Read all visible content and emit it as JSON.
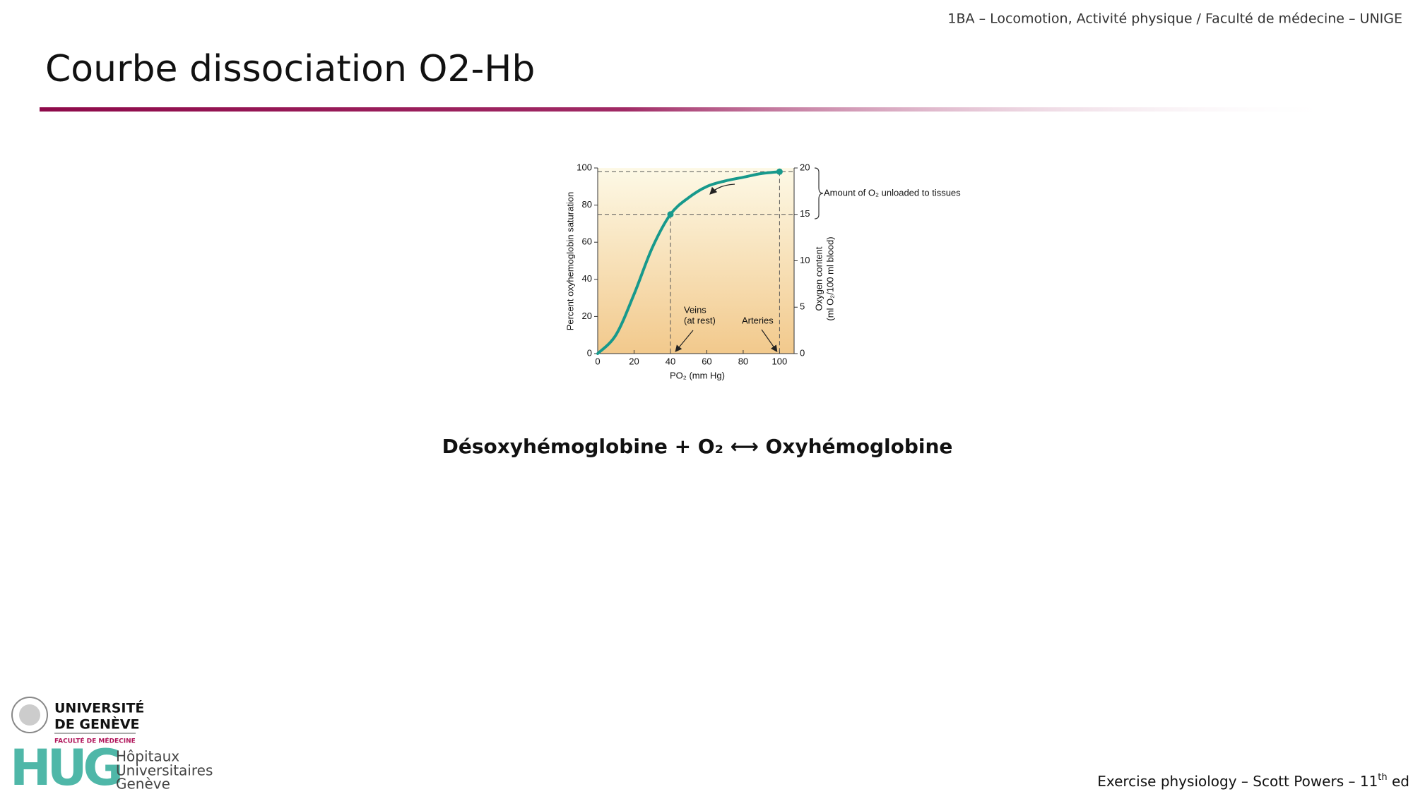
{
  "header": {
    "course": "1BA – Locomotion, Activité physique / Faculté de médecine – UNIGE",
    "title": "Courbe dissociation O2-Hb"
  },
  "chart_data": {
    "type": "line",
    "x_label": "PO₂ (mm Hg)",
    "y_label": "Percent oxyhemoglobin saturation",
    "y2_label": [
      "Oxygen content",
      "(ml O₂/100 ml blood)"
    ],
    "x": [
      0,
      10,
      20,
      30,
      40,
      50,
      60,
      70,
      80,
      90,
      100
    ],
    "series": [
      {
        "color": "#17998c",
        "values": [
          0,
          10,
          32,
          57,
          75,
          84,
          90,
          93,
          95,
          97,
          98
        ]
      }
    ],
    "points": [
      {
        "x": 40,
        "y": 75
      },
      {
        "x": 100,
        "y": 98
      }
    ],
    "xlim": [
      0,
      108
    ],
    "xticks": [
      0,
      20,
      40,
      60,
      80,
      100
    ],
    "ylim": [
      0,
      100
    ],
    "yticks": [
      0,
      20,
      40,
      60,
      80,
      100
    ],
    "y2lim": [
      0,
      20
    ],
    "y2ticks": [
      0,
      5,
      10,
      15,
      20
    ],
    "annotations": {
      "unloaded": "Amount of O₂ unloaded to tissues",
      "veins": [
        "Veins",
        "(at rest)"
      ],
      "arteries": "Arteries"
    }
  },
  "equation": "Désoxyhémoglobine + O₂ ⟷ Oxyhémoglobine",
  "logos": {
    "unige": [
      "UNIVERSITÉ",
      "DE GENÈVE"
    ],
    "faculty": "FACULTÉ DE MÉDECINE",
    "hug": "HUG",
    "hug_name": [
      "Hôpitaux",
      "Universitaires",
      "Genève"
    ]
  },
  "footer": [
    "Exercise physiology – Scott Powers – 11",
    "th",
    " ed"
  ]
}
